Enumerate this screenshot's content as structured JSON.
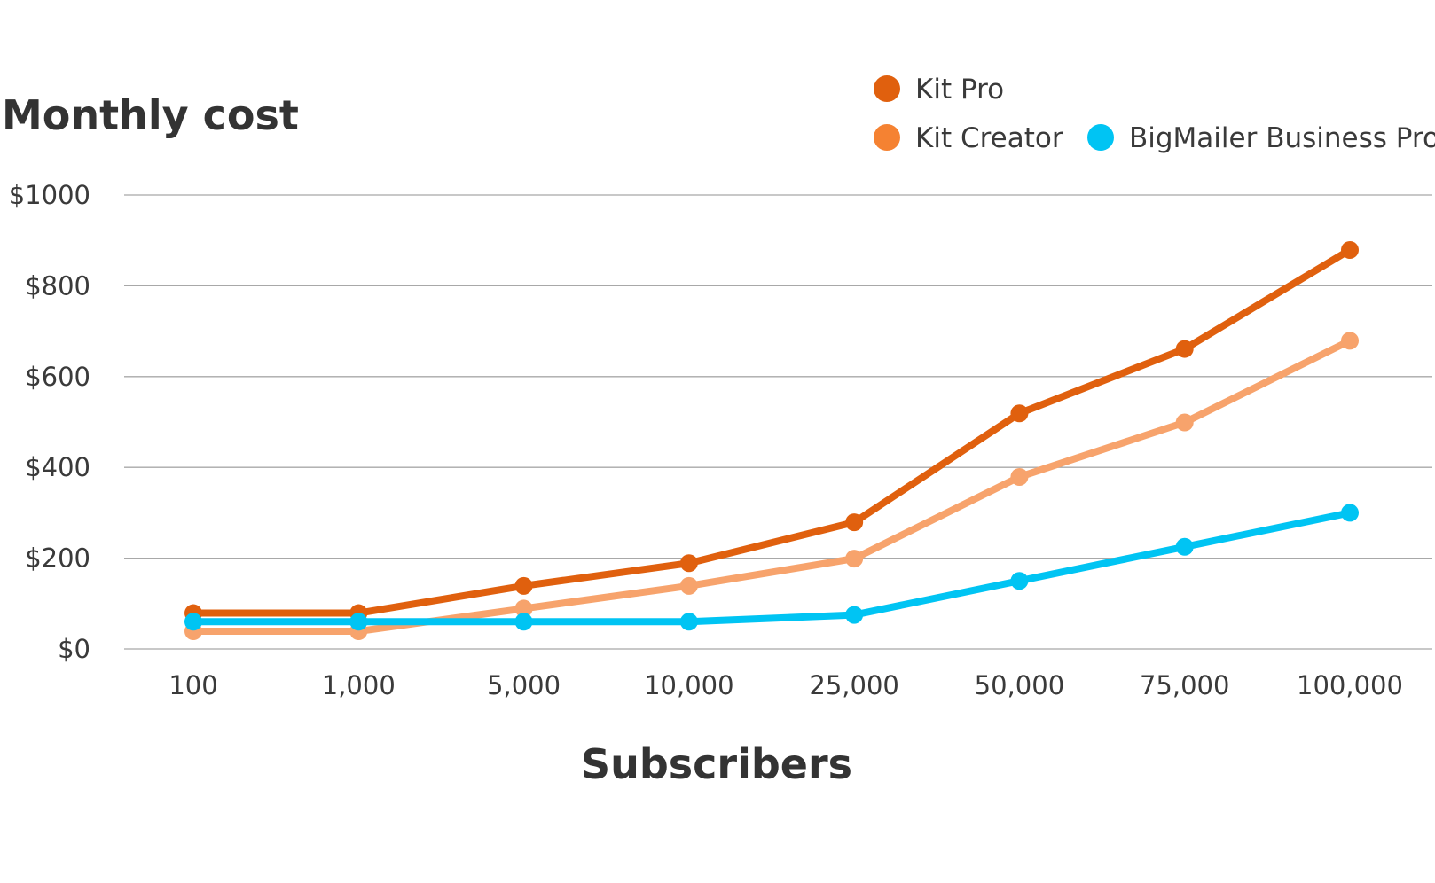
{
  "chart_data": {
    "type": "line",
    "title": "",
    "ylabel": "Monthly cost",
    "xlabel": "Subscribers",
    "categories": [
      "100",
      "1,000",
      "5,000",
      "10,000",
      "25,000",
      "50,000",
      "75,000",
      "100,000"
    ],
    "y_ticks": [
      "$0",
      "$200",
      "$400",
      "$600",
      "$800",
      "$1000"
    ],
    "ylim": [
      0,
      1000
    ],
    "grid": true,
    "legend_position": "top-right",
    "series": [
      {
        "name": "Kit Pro",
        "color": "#e0600e",
        "values": [
          79,
          79,
          139,
          189,
          279,
          519,
          661,
          879
        ]
      },
      {
        "name": "Kit Creator",
        "color": "#f7a36c",
        "legend_color": "#f58232",
        "values": [
          39,
          39,
          89,
          139,
          199,
          379,
          499,
          679
        ]
      },
      {
        "name": "BigMailer Business Pro",
        "color": "#00c4f3",
        "values": [
          60,
          60,
          60,
          60,
          75,
          150,
          225,
          300
        ]
      }
    ]
  }
}
